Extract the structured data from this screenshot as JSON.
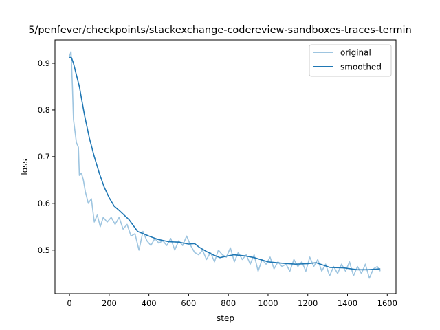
{
  "chart_data": {
    "type": "line",
    "title": "5/penfever/checkpoints/stackexchange-codereview-sandboxes-traces-termin",
    "xlabel": "step",
    "ylabel": "loss",
    "xlim": [
      -73,
      1644
    ],
    "ylim": [
      0.407,
      0.95
    ],
    "xticks": [
      0,
      200,
      400,
      600,
      800,
      1000,
      1200,
      1400,
      1600
    ],
    "yticks": [
      0.5,
      0.6,
      0.7,
      0.8,
      0.9
    ],
    "ytick_labels": [
      "0.5",
      "0.6",
      "0.7",
      "0.8",
      "0.9"
    ],
    "grid": false,
    "legend_position": "top-right",
    "series": [
      {
        "name": "original",
        "color": "#9ec5e0",
        "x": [
          0,
          8,
          15,
          20,
          35,
          45,
          50,
          60,
          70,
          80,
          95,
          110,
          125,
          140,
          155,
          170,
          190,
          210,
          230,
          250,
          270,
          290,
          310,
          330,
          350,
          370,
          390,
          410,
          430,
          450,
          470,
          490,
          510,
          530,
          550,
          570,
          590,
          610,
          630,
          650,
          670,
          690,
          710,
          730,
          750,
          770,
          790,
          810,
          830,
          850,
          870,
          890,
          910,
          930,
          950,
          970,
          990,
          1010,
          1030,
          1050,
          1070,
          1090,
          1110,
          1130,
          1150,
          1170,
          1190,
          1210,
          1230,
          1250,
          1270,
          1290,
          1310,
          1330,
          1350,
          1370,
          1390,
          1410,
          1430,
          1450,
          1470,
          1490,
          1510,
          1530,
          1550,
          1565
        ],
        "y": [
          0.915,
          0.925,
          0.85,
          0.78,
          0.73,
          0.72,
          0.66,
          0.665,
          0.65,
          0.625,
          0.6,
          0.61,
          0.56,
          0.575,
          0.55,
          0.57,
          0.56,
          0.57,
          0.555,
          0.57,
          0.545,
          0.555,
          0.53,
          0.535,
          0.5,
          0.54,
          0.52,
          0.51,
          0.525,
          0.515,
          0.52,
          0.51,
          0.525,
          0.5,
          0.52,
          0.51,
          0.53,
          0.51,
          0.495,
          0.49,
          0.5,
          0.48,
          0.495,
          0.475,
          0.5,
          0.49,
          0.485,
          0.505,
          0.475,
          0.495,
          0.48,
          0.49,
          0.47,
          0.49,
          0.455,
          0.48,
          0.47,
          0.485,
          0.46,
          0.475,
          0.465,
          0.47,
          0.455,
          0.48,
          0.465,
          0.475,
          0.455,
          0.485,
          0.465,
          0.48,
          0.455,
          0.47,
          0.445,
          0.465,
          0.45,
          0.47,
          0.455,
          0.475,
          0.445,
          0.465,
          0.45,
          0.47,
          0.44,
          0.46,
          0.465,
          0.455
        ]
      },
      {
        "name": "smoothed",
        "color": "#1f77b4",
        "x": [
          0,
          10,
          20,
          35,
          50,
          75,
          100,
          125,
          150,
          175,
          200,
          225,
          250,
          300,
          343,
          400,
          446,
          500,
          550,
          600,
          630,
          654,
          690,
          723,
          758,
          800,
          827,
          880,
          930,
          1000,
          1070,
          1138,
          1200,
          1242,
          1311,
          1380,
          1450,
          1500,
          1565
        ],
        "y": [
          0.913,
          0.912,
          0.9,
          0.875,
          0.85,
          0.79,
          0.74,
          0.7,
          0.665,
          0.635,
          0.612,
          0.594,
          0.585,
          0.565,
          0.54,
          0.53,
          0.523,
          0.518,
          0.517,
          0.513,
          0.514,
          0.506,
          0.497,
          0.49,
          0.484,
          0.488,
          0.49,
          0.488,
          0.484,
          0.475,
          0.472,
          0.47,
          0.471,
          0.473,
          0.463,
          0.462,
          0.458,
          0.458,
          0.46
        ]
      }
    ]
  }
}
